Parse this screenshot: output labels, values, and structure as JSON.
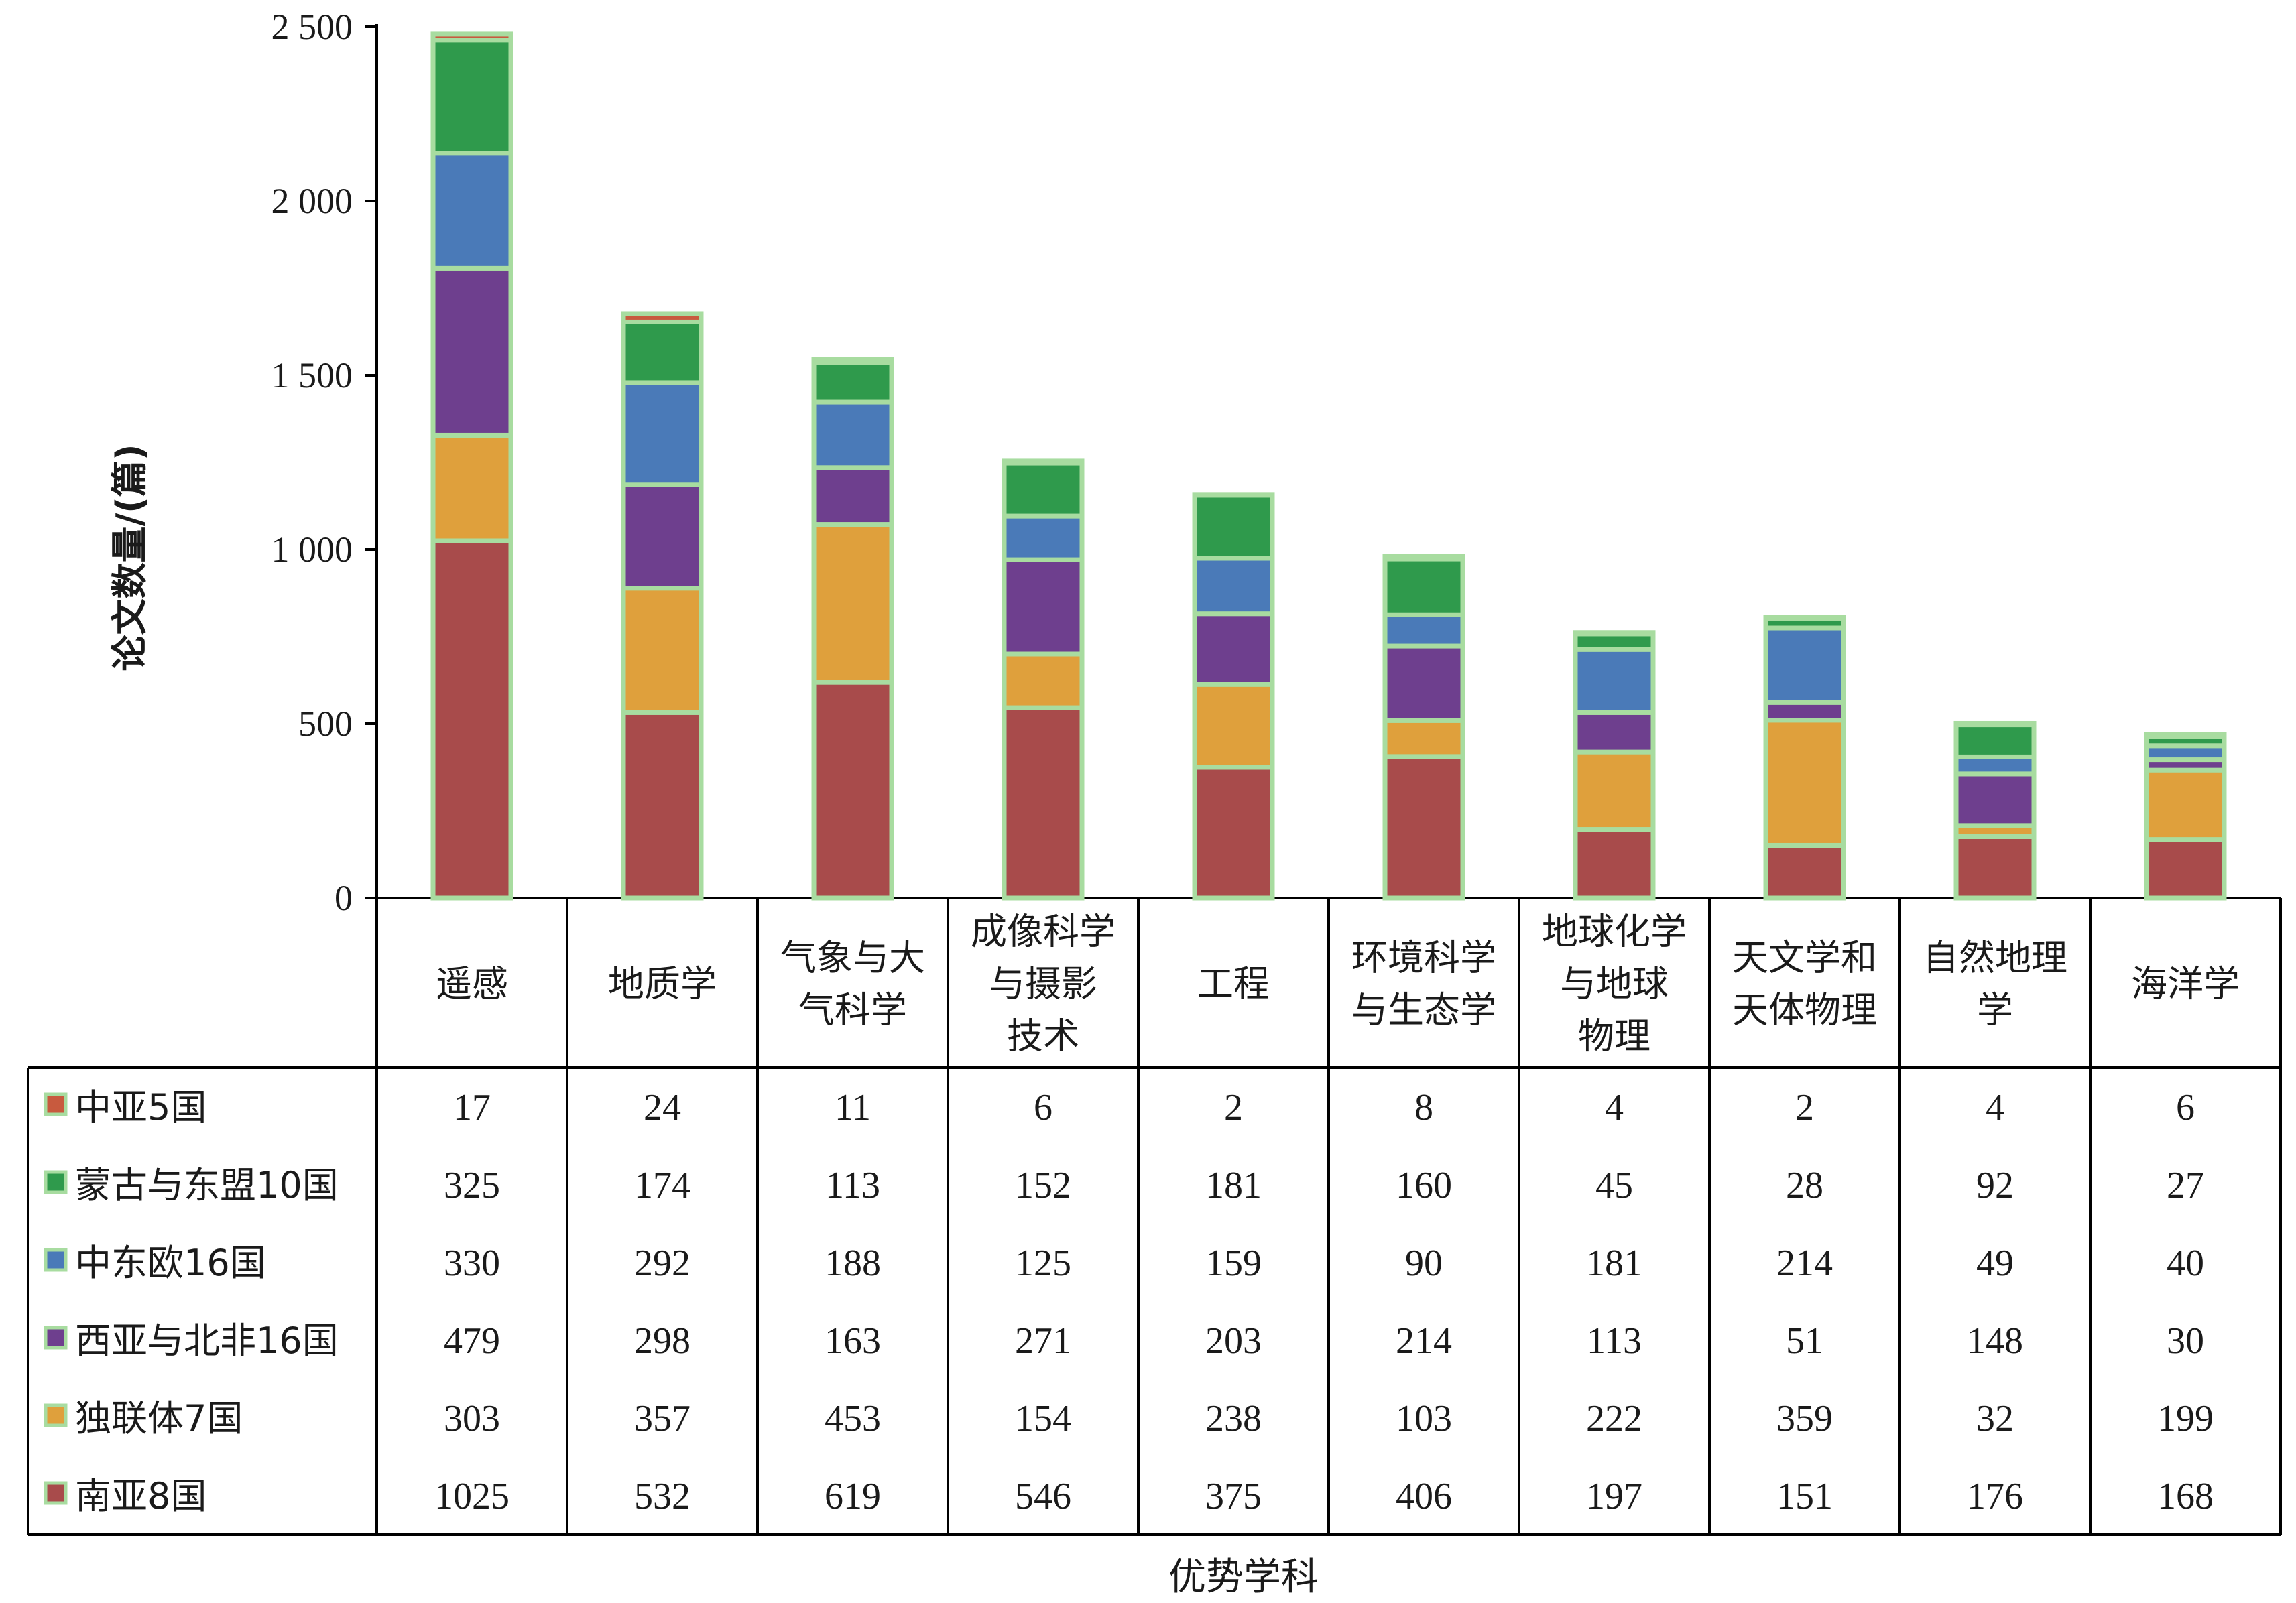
{
  "chart_data": {
    "type": "bar",
    "stacked": true,
    "title": "",
    "ylabel": "论文数量/(篇)",
    "xlabel": "优势学科",
    "ylim": [
      0,
      2500
    ],
    "yticks": [
      0,
      500,
      1000,
      1500,
      2000,
      2500
    ],
    "ytick_labels": [
      "0",
      "500",
      "1 000",
      "1 500",
      "2 000",
      "2 500"
    ],
    "grid": false,
    "legend_position": "data-table",
    "categories": [
      [
        "遥感"
      ],
      [
        "地质学"
      ],
      [
        "气象与大",
        "气科学"
      ],
      [
        "成像科学",
        "与摄影",
        "技术"
      ],
      [
        "工程"
      ],
      [
        "环境科学",
        "与生态学"
      ],
      [
        "地球化学",
        "与地球",
        "物理"
      ],
      [
        "天文学和",
        "天体物理"
      ],
      [
        "自然地理",
        "学"
      ],
      [
        "海洋学"
      ]
    ],
    "series": [
      {
        "name": "南亚8国",
        "color": "#a84b4b",
        "values": [
          1025,
          532,
          619,
          546,
          375,
          406,
          197,
          151,
          176,
          168
        ]
      },
      {
        "name": "独联体7国",
        "color": "#dfa03c",
        "values": [
          303,
          357,
          453,
          154,
          238,
          103,
          222,
          359,
          32,
          199
        ]
      },
      {
        "name": "西亚与北非16国",
        "color": "#6e3f8e",
        "values": [
          479,
          298,
          163,
          271,
          203,
          214,
          113,
          51,
          148,
          30
        ]
      },
      {
        "name": "中东欧16国",
        "color": "#4a7ab8",
        "values": [
          330,
          292,
          188,
          125,
          159,
          90,
          181,
          214,
          49,
          40
        ]
      },
      {
        "name": "蒙古与东盟10国",
        "color": "#2f9a4c",
        "values": [
          325,
          174,
          113,
          152,
          181,
          160,
          45,
          28,
          92,
          27
        ]
      },
      {
        "name": "中亚5国",
        "color": "#c85a3e",
        "values": [
          17,
          24,
          11,
          6,
          2,
          8,
          4,
          2,
          4,
          6
        ]
      }
    ],
    "table_row_order": [
      "中亚5国",
      "蒙古与东盟10国",
      "中东欧16国",
      "西亚与北非16国",
      "独联体7国",
      "南亚8国"
    ]
  }
}
